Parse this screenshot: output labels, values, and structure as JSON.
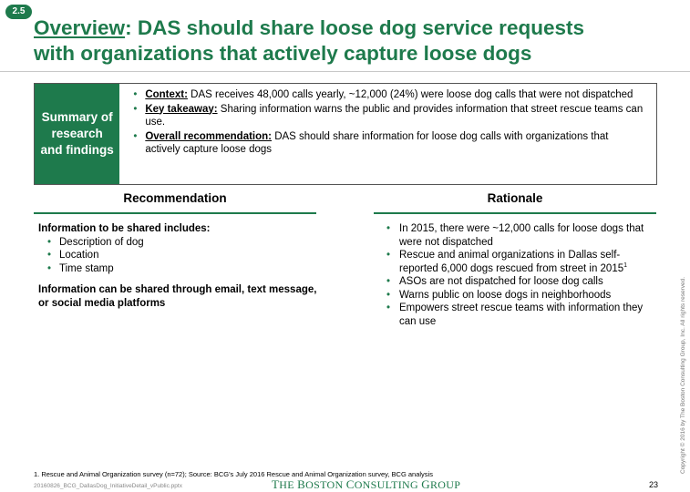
{
  "badge": "2.5",
  "title": {
    "underlined": "Overview",
    "rest_line1": ": DAS should share loose dog service requests",
    "line2": "with organizations that actively capture loose dogs"
  },
  "summary": {
    "label": "Summary of research and findings",
    "items": [
      {
        "key": "Context:",
        "text": " DAS receives 48,000 calls yearly, ~12,000 (24%) were loose dog calls that were not dispatched"
      },
      {
        "key": "Key takeaway:",
        "text": " Sharing information warns the public and provides information that street rescue teams can use."
      },
      {
        "key": "Overall recommendation:",
        "text": " DAS should share information for loose dog calls with organizations that actively capture loose dogs"
      }
    ]
  },
  "recommendation": {
    "header": "Recommendation",
    "intro": "Information to be shared includes:",
    "items": [
      "Description of dog",
      "Location",
      "Time stamp"
    ],
    "note": "Information can be shared through email, text message, or social media platforms"
  },
  "rationale": {
    "header": "Rationale",
    "items": [
      "In 2015, there were ~12,000 calls for loose dogs that were not dispatched",
      "Rescue and animal organizations in Dallas self-reported 6,000 dogs rescued from street in 2015",
      "ASOs are not dispatched for loose dog calls",
      "Warns public on loose dogs in neighborhoods",
      "Empowers street rescue teams with information they can use"
    ],
    "footnote_marker": "1"
  },
  "footer": {
    "footnote": "1. Rescue and Animal Organization survey (n=72); Source: BCG's July 2016 Rescue and Animal Organization survey, BCG analysis",
    "filename": "20160826_BCG_DallasDog_InitiativeDetail_vPublic.pptx",
    "logo": {
      "the": "T",
      "he": "HE ",
      "b": "B",
      "oston": "OSTON ",
      "c": "C",
      "onsulting": "ONSULTING ",
      "g": "G",
      "roup": "ROUP"
    },
    "page_number": "23",
    "copyright": "Copyright © 2016 by The Boston Consulting Group, Inc. All rights reserved."
  },
  "colors": {
    "accent": "#1e7a4c"
  }
}
